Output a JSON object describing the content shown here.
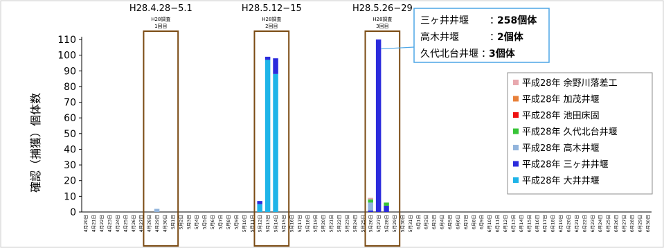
{
  "chart_data": {
    "type": "bar",
    "stacked": true,
    "ylabel": "確認（捕獲）個体数",
    "xlabel": "",
    "ylim": [
      0,
      110
    ],
    "yticks": [
      0,
      10,
      20,
      30,
      40,
      50,
      60,
      70,
      80,
      90,
      100,
      110
    ],
    "grid": false,
    "legend_position": "right",
    "categories": [
      "4月20日",
      "4月21日",
      "4月22日",
      "4月23日",
      "4月24日",
      "4月25日",
      "4月26日",
      "4月27日",
      "4月28日",
      "4月29日",
      "4月30日",
      "5月1日",
      "5月2日",
      "5月3日",
      "5月4日",
      "5月5日",
      "5月6日",
      "5月7日",
      "5月8日",
      "5月9日",
      "5月10日",
      "5月11日",
      "5月12日",
      "5月13日",
      "5月14日",
      "5月15日",
      "5月16日",
      "5月17日",
      "5月18日",
      "5月19日",
      "5月20日",
      "5月21日",
      "5月22日",
      "5月23日",
      "5月24日",
      "5月25日",
      "5月26日",
      "5月27日",
      "5月28日",
      "5月29日",
      "5月30日",
      "5月31日",
      "6月1日",
      "6月2日",
      "6月3日",
      "6月4日",
      "6月5日",
      "6月6日",
      "6月7日",
      "6月8日",
      "6月9日",
      "6月10日",
      "6月11日",
      "6月12日",
      "6月13日",
      "6月14日",
      "6月15日",
      "6月16日",
      "6月17日",
      "6月18日",
      "6月19日",
      "6月20日",
      "6月21日",
      "6月22日",
      "6月23日",
      "6月24日",
      "6月25日",
      "6月26日",
      "6月27日",
      "6月28日",
      "6月29日",
      "6月30日"
    ],
    "series": [
      {
        "name": "平成28年 大井井堰",
        "color": "#1fb4e8",
        "points": [
          [
            "5月12日",
            5
          ],
          [
            "5月13日",
            97
          ],
          [
            "5月14日",
            88
          ]
        ]
      },
      {
        "name": "平成28年 三ヶ井井堰",
        "color": "#2b2bdc",
        "points": [
          [
            "5月12日",
            2
          ],
          [
            "5月13日",
            2
          ],
          [
            "5月14日",
            10
          ],
          [
            "5月26日",
            1
          ],
          [
            "5月27日",
            110
          ],
          [
            "5月28日",
            4
          ]
        ]
      },
      {
        "name": "平成28年 高木井堰",
        "color": "#92b4dc",
        "points": [
          [
            "4月29日",
            2
          ],
          [
            "5月26日",
            5
          ]
        ]
      },
      {
        "name": "平成28年 久代北台井堰",
        "color": "#37c437",
        "points": [
          [
            "5月26日",
            2
          ],
          [
            "5月28日",
            2
          ]
        ]
      },
      {
        "name": "平成28年 池田床固",
        "color": "#ee1111",
        "points": []
      },
      {
        "name": "平成28年 加茂井堰",
        "color": "#e8803a",
        "points": []
      },
      {
        "name": "平成28年 余野川落差工",
        "color": "#e8a8ae",
        "points": [
          [
            "5月26日",
            1
          ]
        ]
      }
    ],
    "legend_order": [
      6,
      5,
      4,
      3,
      2,
      1,
      0
    ],
    "surveys": [
      {
        "date": "H28.4.28−5.1",
        "line1": "H28調査",
        "line2": "1回目",
        "from": "4月28日",
        "to": "5月1日"
      },
      {
        "date": "H28.5.12−15",
        "line1": "H28調査",
        "line2": "2回目",
        "from": "5月12日",
        "to": "5月15日"
      },
      {
        "date": "H28.5.26−29",
        "line1": "H28調査",
        "line2": "3回目",
        "from": "5月26日",
        "to": "5月29日"
      }
    ],
    "callout": {
      "target": "5月27日",
      "rows": [
        {
          "name": "三ヶ井井堰",
          "sep": "：",
          "value": "258個体",
          "color": "#2b2bdc"
        },
        {
          "name": "高木井堰",
          "sep": "：",
          "value": "2個体",
          "color": "#92b4dc"
        },
        {
          "name": "久代北台井堰",
          "sep": "：",
          "value": "3個体",
          "color": "#37c437"
        }
      ]
    }
  }
}
